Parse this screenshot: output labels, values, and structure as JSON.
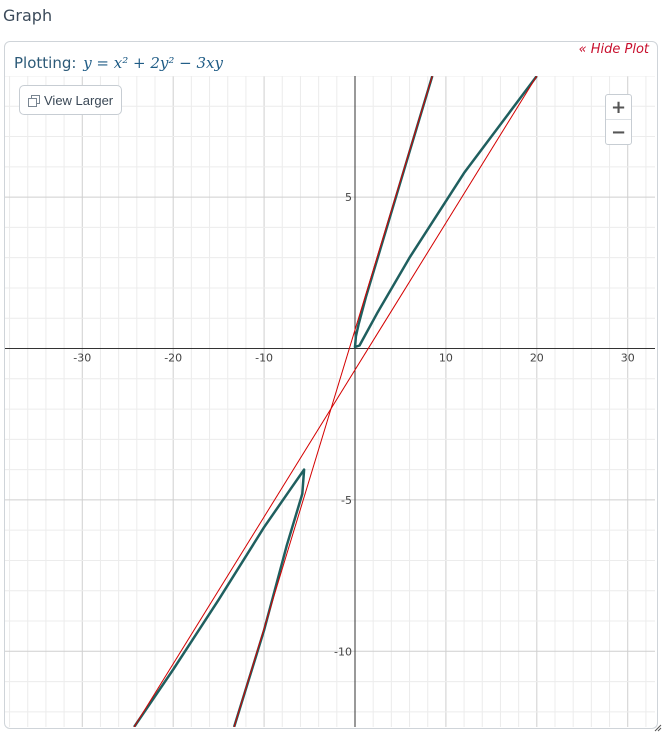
{
  "section": {
    "title": "Graph"
  },
  "plot": {
    "hide_label": "« Hide Plot",
    "label_prefix": "Plotting:",
    "equation": "y = x² + 2y² − 3xy"
  },
  "toolbar": {
    "view_larger_label": "View Larger"
  },
  "zoom": {
    "in_label": "+",
    "out_label": "−"
  },
  "chart_data": {
    "type": "line",
    "title": "",
    "xlabel": "",
    "ylabel": "",
    "xlim": [
      -38.5,
      33
    ],
    "ylim": [
      -12.5,
      9
    ],
    "grid": true,
    "x_ticks": [
      -30,
      -20,
      -10,
      10,
      20,
      30
    ],
    "y_ticks": [
      5,
      -5,
      -10
    ],
    "x_tick_labels": [
      "-30",
      "-20",
      "-10",
      "10",
      "20",
      "30"
    ],
    "y_tick_labels": [
      "5",
      "-5",
      "-10"
    ],
    "curve_color": "#1f5f5f",
    "asymptote_color": "#d40000",
    "series": [
      {
        "kind": "curve",
        "points": [
          [
            8.5,
            9
          ],
          [
            5.5,
            6
          ],
          [
            3,
            3.5
          ],
          [
            1.2,
            1.7
          ],
          [
            0.4,
            0.8
          ],
          [
            0.1,
            0.4
          ],
          [
            0.0,
            0.05
          ],
          [
            0.5,
            0.1
          ],
          [
            2.5,
            1.2
          ],
          [
            6,
            3
          ],
          [
            12,
            5.8
          ],
          [
            20,
            9
          ]
        ]
      },
      {
        "kind": "curve",
        "points": [
          [
            -24.3,
            -12.5
          ],
          [
            -20,
            -10.6
          ],
          [
            -15,
            -8.3
          ],
          [
            -10,
            -5.9
          ],
          [
            -7,
            -4.6
          ],
          [
            -5.6,
            -4.0
          ],
          [
            -5.8,
            -4.8
          ],
          [
            -7.5,
            -6.5
          ],
          [
            -10,
            -9.3
          ],
          [
            -13.3,
            -12.5
          ]
        ]
      },
      {
        "kind": "asymptote",
        "points": [
          [
            -24.3,
            -12.5
          ],
          [
            20,
            9
          ]
        ]
      },
      {
        "kind": "asymptote",
        "points": [
          [
            -13.3,
            -12.5
          ],
          [
            8.5,
            9
          ]
        ]
      }
    ]
  }
}
